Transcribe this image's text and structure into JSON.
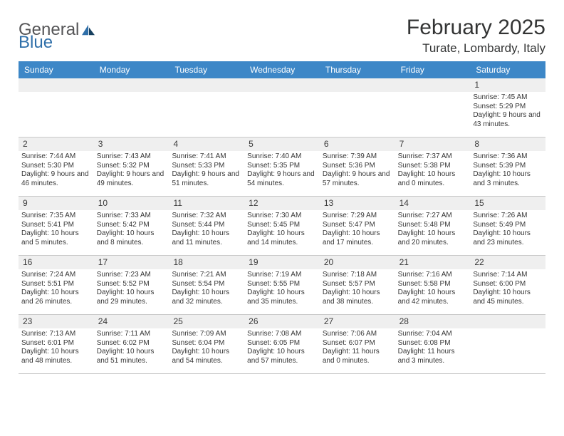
{
  "brand": {
    "word1": "General",
    "word2": "Blue"
  },
  "title": "February 2025",
  "location": "Turate, Lombardy, Italy",
  "colors": {
    "header_bg": "#3d87c7",
    "header_text": "#ffffff",
    "band_bg": "#efefef",
    "text": "#363636",
    "rule": "#c9c9c9",
    "logo_gray": "#555557",
    "logo_blue": "#2f6fa9"
  },
  "day_names": [
    "Sunday",
    "Monday",
    "Tuesday",
    "Wednesday",
    "Thursday",
    "Friday",
    "Saturday"
  ],
  "weeks": [
    [
      {
        "n": "",
        "l": []
      },
      {
        "n": "",
        "l": []
      },
      {
        "n": "",
        "l": []
      },
      {
        "n": "",
        "l": []
      },
      {
        "n": "",
        "l": []
      },
      {
        "n": "",
        "l": []
      },
      {
        "n": "1",
        "l": [
          "Sunrise: 7:45 AM",
          "Sunset: 5:29 PM",
          "Daylight: 9 hours and 43 minutes."
        ]
      }
    ],
    [
      {
        "n": "2",
        "l": [
          "Sunrise: 7:44 AM",
          "Sunset: 5:30 PM",
          "Daylight: 9 hours and 46 minutes."
        ]
      },
      {
        "n": "3",
        "l": [
          "Sunrise: 7:43 AM",
          "Sunset: 5:32 PM",
          "Daylight: 9 hours and 49 minutes."
        ]
      },
      {
        "n": "4",
        "l": [
          "Sunrise: 7:41 AM",
          "Sunset: 5:33 PM",
          "Daylight: 9 hours and 51 minutes."
        ]
      },
      {
        "n": "5",
        "l": [
          "Sunrise: 7:40 AM",
          "Sunset: 5:35 PM",
          "Daylight: 9 hours and 54 minutes."
        ]
      },
      {
        "n": "6",
        "l": [
          "Sunrise: 7:39 AM",
          "Sunset: 5:36 PM",
          "Daylight: 9 hours and 57 minutes."
        ]
      },
      {
        "n": "7",
        "l": [
          "Sunrise: 7:37 AM",
          "Sunset: 5:38 PM",
          "Daylight: 10 hours and 0 minutes."
        ]
      },
      {
        "n": "8",
        "l": [
          "Sunrise: 7:36 AM",
          "Sunset: 5:39 PM",
          "Daylight: 10 hours and 3 minutes."
        ]
      }
    ],
    [
      {
        "n": "9",
        "l": [
          "Sunrise: 7:35 AM",
          "Sunset: 5:41 PM",
          "Daylight: 10 hours and 5 minutes."
        ]
      },
      {
        "n": "10",
        "l": [
          "Sunrise: 7:33 AM",
          "Sunset: 5:42 PM",
          "Daylight: 10 hours and 8 minutes."
        ]
      },
      {
        "n": "11",
        "l": [
          "Sunrise: 7:32 AM",
          "Sunset: 5:44 PM",
          "Daylight: 10 hours and 11 minutes."
        ]
      },
      {
        "n": "12",
        "l": [
          "Sunrise: 7:30 AM",
          "Sunset: 5:45 PM",
          "Daylight: 10 hours and 14 minutes."
        ]
      },
      {
        "n": "13",
        "l": [
          "Sunrise: 7:29 AM",
          "Sunset: 5:47 PM",
          "Daylight: 10 hours and 17 minutes."
        ]
      },
      {
        "n": "14",
        "l": [
          "Sunrise: 7:27 AM",
          "Sunset: 5:48 PM",
          "Daylight: 10 hours and 20 minutes."
        ]
      },
      {
        "n": "15",
        "l": [
          "Sunrise: 7:26 AM",
          "Sunset: 5:49 PM",
          "Daylight: 10 hours and 23 minutes."
        ]
      }
    ],
    [
      {
        "n": "16",
        "l": [
          "Sunrise: 7:24 AM",
          "Sunset: 5:51 PM",
          "Daylight: 10 hours and 26 minutes."
        ]
      },
      {
        "n": "17",
        "l": [
          "Sunrise: 7:23 AM",
          "Sunset: 5:52 PM",
          "Daylight: 10 hours and 29 minutes."
        ]
      },
      {
        "n": "18",
        "l": [
          "Sunrise: 7:21 AM",
          "Sunset: 5:54 PM",
          "Daylight: 10 hours and 32 minutes."
        ]
      },
      {
        "n": "19",
        "l": [
          "Sunrise: 7:19 AM",
          "Sunset: 5:55 PM",
          "Daylight: 10 hours and 35 minutes."
        ]
      },
      {
        "n": "20",
        "l": [
          "Sunrise: 7:18 AM",
          "Sunset: 5:57 PM",
          "Daylight: 10 hours and 38 minutes."
        ]
      },
      {
        "n": "21",
        "l": [
          "Sunrise: 7:16 AM",
          "Sunset: 5:58 PM",
          "Daylight: 10 hours and 42 minutes."
        ]
      },
      {
        "n": "22",
        "l": [
          "Sunrise: 7:14 AM",
          "Sunset: 6:00 PM",
          "Daylight: 10 hours and 45 minutes."
        ]
      }
    ],
    [
      {
        "n": "23",
        "l": [
          "Sunrise: 7:13 AM",
          "Sunset: 6:01 PM",
          "Daylight: 10 hours and 48 minutes."
        ]
      },
      {
        "n": "24",
        "l": [
          "Sunrise: 7:11 AM",
          "Sunset: 6:02 PM",
          "Daylight: 10 hours and 51 minutes."
        ]
      },
      {
        "n": "25",
        "l": [
          "Sunrise: 7:09 AM",
          "Sunset: 6:04 PM",
          "Daylight: 10 hours and 54 minutes."
        ]
      },
      {
        "n": "26",
        "l": [
          "Sunrise: 7:08 AM",
          "Sunset: 6:05 PM",
          "Daylight: 10 hours and 57 minutes."
        ]
      },
      {
        "n": "27",
        "l": [
          "Sunrise: 7:06 AM",
          "Sunset: 6:07 PM",
          "Daylight: 11 hours and 0 minutes."
        ]
      },
      {
        "n": "28",
        "l": [
          "Sunrise: 7:04 AM",
          "Sunset: 6:08 PM",
          "Daylight: 11 hours and 3 minutes."
        ]
      },
      {
        "n": "",
        "l": []
      }
    ]
  ]
}
